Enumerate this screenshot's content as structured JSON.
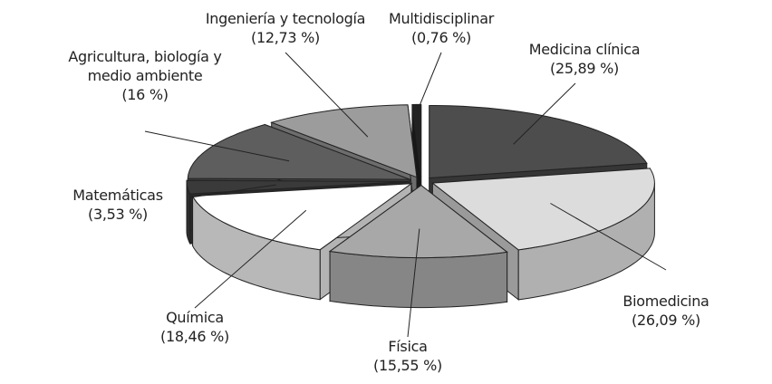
{
  "chart_data": {
    "type": "pie",
    "categories": [
      "Medicina clínica",
      "Biomedicina",
      "Física",
      "Química",
      "Matemáticas",
      "Agricultura, biología y medio ambiente",
      "Ingeniería y tecnología",
      "Multidisciplinar"
    ],
    "values": [
      25.89,
      26.09,
      15.55,
      18.46,
      3.53,
      16,
      12.73,
      0.76
    ],
    "value_labels": [
      "(25,89 %)",
      "(26,09 %)",
      "(15,55 %)",
      "(18,46 %)",
      "(3,53 %)",
      "(16 %)",
      "(12,73 %)",
      "(0,76 %)"
    ],
    "colors": [
      "#4d4d4d",
      "#dcdcdc",
      "#a8a8a8",
      "#ffffff",
      "#3a3a3a",
      "#5e5e5e",
      "#9c9c9c",
      "#222222"
    ]
  }
}
